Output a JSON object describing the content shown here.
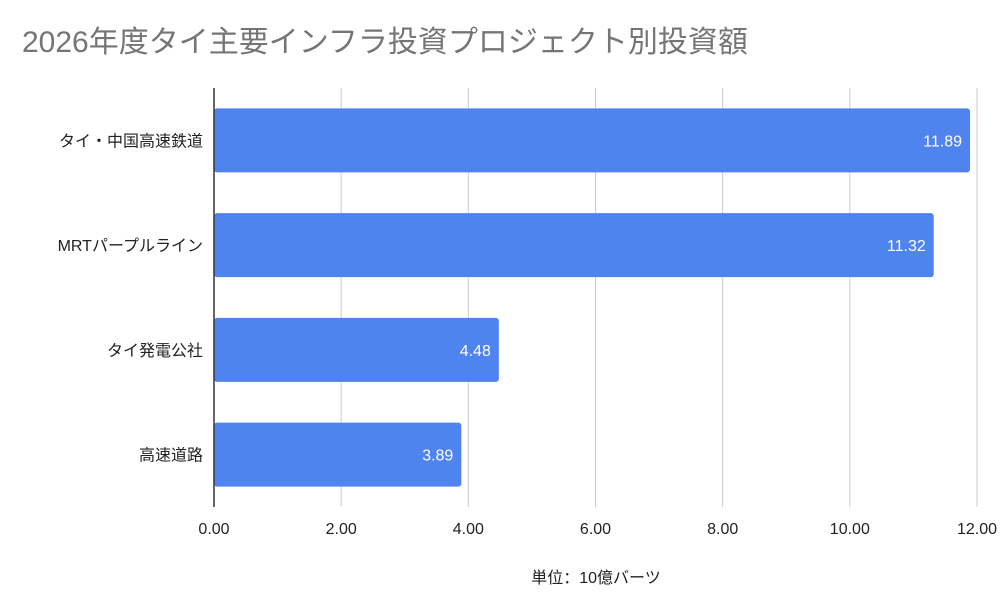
{
  "chart_data": {
    "type": "bar",
    "orientation": "horizontal",
    "title": "2026年度タイ主要インフラ投資プロジェクト別投資額",
    "categories": [
      "タイ・中国高速鉄道",
      "MRTパープルライン",
      "タイ発電公社",
      "高速道路"
    ],
    "values": [
      11.89,
      11.32,
      4.48,
      3.89
    ],
    "data_labels": [
      "11.89",
      "11.32",
      "4.48",
      "3.89"
    ],
    "xlabel": "単位：10億バーツ",
    "ylabel": "",
    "xlim": [
      0,
      12
    ],
    "xticks": [
      0,
      2,
      4,
      6,
      8,
      10,
      12
    ],
    "xtick_labels": [
      "0.00",
      "2.00",
      "4.00",
      "6.00",
      "8.00",
      "10.00",
      "12.00"
    ],
    "grid": "vertical",
    "legend": "none",
    "bar_color": "#4f83ed"
  }
}
